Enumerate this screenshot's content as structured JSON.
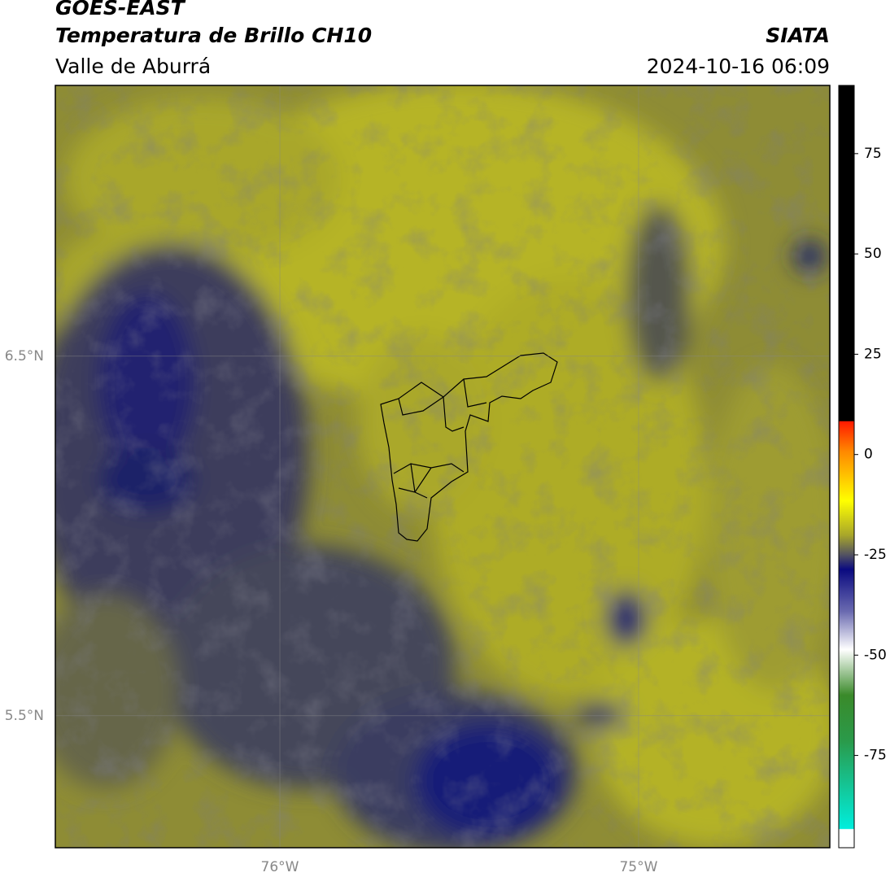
{
  "header": {
    "title": "GOES-EAST",
    "subtitle": "Temperatura de Brillo CH10",
    "region": "Valle de Aburrá",
    "source": "SIATA",
    "datetime": "2024-10-16 06:09"
  },
  "map": {
    "xlim": [
      -76.626,
      -74.467
    ],
    "ylim": [
      5.133,
      7.253
    ],
    "xticks": [
      {
        "value": -76,
        "label": "76°W"
      },
      {
        "value": -75,
        "label": "75°W"
      }
    ],
    "yticks": [
      {
        "value": 6.5,
        "label": "6.5°N"
      },
      {
        "value": 5.5,
        "label": "5.5°N"
      }
    ],
    "grid": true
  },
  "colorbar": {
    "clim": [
      -98,
      92
    ],
    "ticks": [
      75,
      50,
      25,
      0,
      -25,
      -50,
      -75
    ]
  }
}
